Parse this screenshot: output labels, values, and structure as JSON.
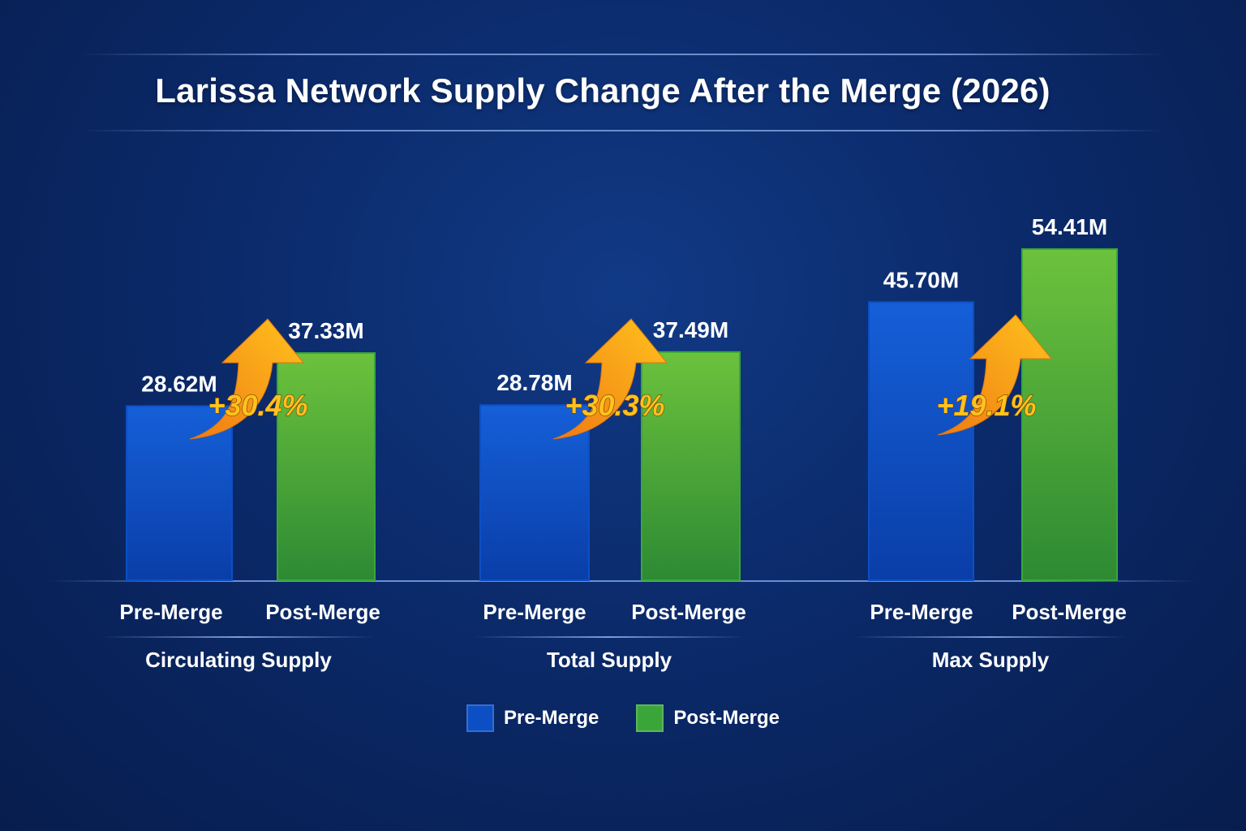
{
  "title": "Larissa Network Supply Change After the Merge (2026)",
  "colors": {
    "pre": "#0c4fc4",
    "post": "#3aa63a",
    "arrow": "#f7a21b",
    "pct_text": "#ffc21e"
  },
  "legend": {
    "pre_label": "Pre-Merge",
    "post_label": "Post-Merge"
  },
  "chart_data": {
    "type": "bar",
    "title": "Larissa Network Supply Change After the Merge (2026)",
    "unit": "M",
    "categories": [
      "Circulating Supply",
      "Total Supply",
      "Max Supply"
    ],
    "series": [
      {
        "name": "Pre-Merge",
        "values": [
          28.62,
          28.78,
          45.7
        ],
        "labels": [
          "28.62M",
          "28.78M",
          "45.70M"
        ]
      },
      {
        "name": "Post-Merge",
        "values": [
          37.33,
          37.49,
          54.41
        ],
        "labels": [
          "37.33M",
          "37.49M",
          "54.41M"
        ]
      }
    ],
    "change_labels": [
      "+30.4%",
      "+30.3%",
      "+19.1%"
    ],
    "legend_position": "bottom",
    "grid": false
  }
}
